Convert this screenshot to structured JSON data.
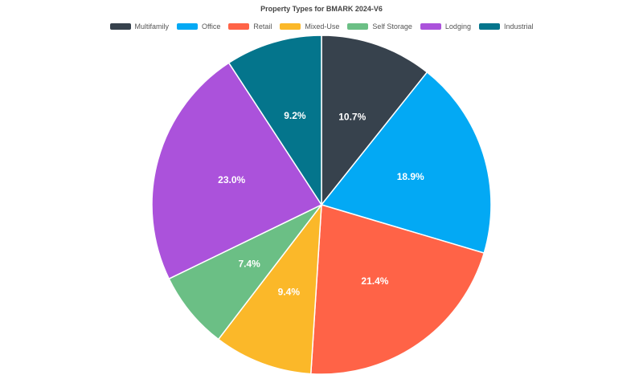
{
  "chart_data": {
    "type": "pie",
    "title": "Property Types for BMARK 2024-V6",
    "legend_position": "top",
    "slices": [
      {
        "label": "Multifamily",
        "value": 10.7,
        "display": "10.7%",
        "color": "#37424d"
      },
      {
        "label": "Office",
        "value": 18.9,
        "display": "18.9%",
        "color": "#03a9f4"
      },
      {
        "label": "Retail",
        "value": 21.4,
        "display": "21.4%",
        "color": "#ff6347"
      },
      {
        "label": "Mixed-Use",
        "value": 9.4,
        "display": "9.4%",
        "color": "#fbb829"
      },
      {
        "label": "Self Storage",
        "value": 7.4,
        "display": "7.4%",
        "color": "#6bbf85"
      },
      {
        "label": "Lodging",
        "value": 23.0,
        "display": "23.0%",
        "color": "#ab52db"
      },
      {
        "label": "Industrial",
        "value": 9.2,
        "display": "9.2%",
        "color": "#04758c"
      }
    ]
  }
}
